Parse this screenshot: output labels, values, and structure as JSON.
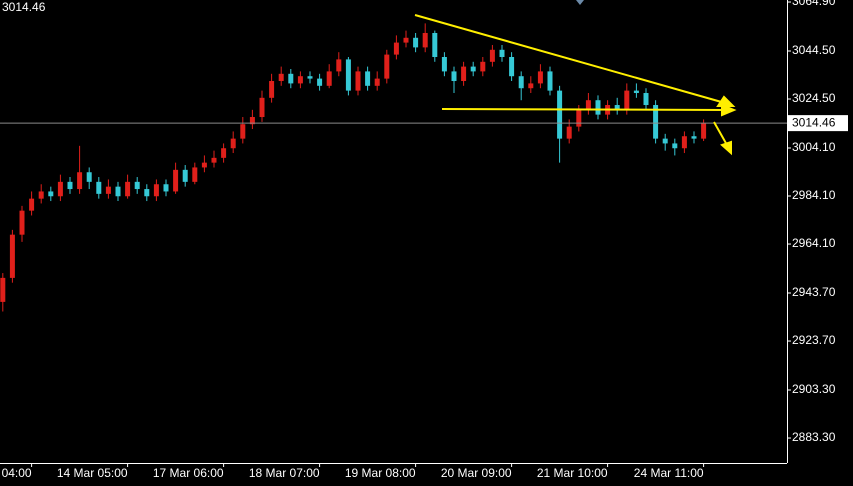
{
  "chart_data": {
    "type": "candlestick",
    "title": "3014.46",
    "up_color": "#e0201b",
    "down_color": "#36c9d6",
    "current_price": 3014.46,
    "categories": [
      null,
      null,
      null,
      "04:00",
      null,
      null,
      null,
      null,
      null,
      null,
      null,
      null,
      null,
      "14 Mar 05:00",
      null,
      null,
      null,
      null,
      null,
      null,
      null,
      null,
      null,
      "17 Mar 06:00",
      null,
      null,
      null,
      null,
      null,
      null,
      null,
      null,
      null,
      "18 Mar 07:00",
      null,
      null,
      null,
      null,
      null,
      null,
      null,
      null,
      null,
      "19 Mar 08:00",
      null,
      null,
      null,
      null,
      null,
      null,
      null,
      null,
      null,
      "20 Mar 09:00",
      null,
      null,
      null,
      null,
      null,
      null,
      null,
      null,
      null,
      "21 Mar 10:00",
      null,
      null,
      null,
      null,
      null,
      null,
      null,
      null,
      null,
      "24 Mar 11:00"
    ],
    "open": [
      2940,
      2950,
      2968,
      2978,
      2983,
      2986,
      2984,
      2990,
      2987,
      2994,
      2990,
      2985,
      2988,
      2984,
      2990,
      2987,
      2984,
      2989,
      2986,
      2995,
      2990,
      2996,
      2998,
      3000,
      3004,
      3008,
      3014,
      3017,
      3025,
      3032,
      3035,
      3031,
      3034,
      3033,
      3030,
      3036,
      3041,
      3028,
      3036,
      3030,
      3033,
      3043,
      3048,
      3050,
      3046,
      3052,
      3042,
      3036,
      3032,
      3038,
      3036,
      3040,
      3045,
      3042,
      3034,
      3029,
      3031,
      3036,
      3028,
      3008,
      3013,
      3020,
      3024,
      3018,
      3022,
      3020,
      3028,
      3027,
      3022,
      3008,
      3006,
      3004,
      3009,
      3008
    ],
    "high": [
      2952,
      2970,
      2980,
      2986,
      2989,
      2988,
      2993,
      2992,
      3005,
      2996,
      2992,
      2991,
      2990,
      2993,
      2992,
      2989,
      2991,
      2991,
      2998,
      2997,
      2998,
      3001,
      3003,
      3006,
      3011,
      3017,
      3020,
      3028,
      3035,
      3038,
      3037,
      3036,
      3036,
      3035,
      3039,
      3044,
      3042,
      3038,
      3038,
      3036,
      3045,
      3051,
      3053,
      3052,
      3056,
      3053,
      3044,
      3038,
      3040,
      3040,
      3042,
      3047,
      3047,
      3044,
      3036,
      3034,
      3039,
      3038,
      3030,
      3016,
      3022,
      3027,
      3026,
      3024,
      3025,
      3031,
      3031,
      3029,
      3024,
      3010,
      3008,
      3011,
      3011,
      3016
    ],
    "low": [
      2936,
      2948,
      2965,
      2976,
      2981,
      2982,
      2982,
      2985,
      2985,
      2987,
      2983,
      2983,
      2982,
      2983,
      2985,
      2982,
      2982,
      2984,
      2985,
      2988,
      2989,
      2994,
      2996,
      2998,
      3002,
      3006,
      3012,
      3015,
      3023,
      3030,
      3029,
      3029,
      3031,
      3028,
      3029,
      3034,
      3026,
      3026,
      3028,
      3028,
      3031,
      3041,
      3046,
      3044,
      3044,
      3040,
      3034,
      3027,
      3030,
      3034,
      3034,
      3038,
      3040,
      3032,
      3024,
      3027,
      3029,
      3026,
      2998,
      3006,
      3011,
      3018,
      3016,
      3016,
      3018,
      3018,
      3025,
      3020,
      3006,
      3003,
      3001,
      3002,
      3006,
      3007
    ],
    "close": [
      2950,
      2968,
      2978,
      2983,
      2986,
      2984,
      2990,
      2987,
      2994,
      2990,
      2985,
      2988,
      2984,
      2990,
      2987,
      2984,
      2989,
      2986,
      2995,
      2990,
      2996,
      2998,
      3000,
      3004,
      3008,
      3014,
      3017,
      3025,
      3032,
      3035,
      3031,
      3034,
      3033,
      3030,
      3036,
      3041,
      3028,
      3036,
      3030,
      3033,
      3043,
      3048,
      3050,
      3046,
      3052,
      3042,
      3036,
      3032,
      3038,
      3036,
      3040,
      3045,
      3042,
      3034,
      3029,
      3031,
      3036,
      3028,
      3008,
      3013,
      3020,
      3024,
      3018,
      3022,
      3020,
      3028,
      3027,
      3022,
      3008,
      3006,
      3004,
      3009,
      3008,
      3014.46
    ],
    "ylim": [
      2872.9,
      3065.74
    ],
    "yticks": [
      {
        "value": 3064.9,
        "label": "3064.90"
      },
      {
        "value": 3044.5,
        "label": "3044.50"
      },
      {
        "value": 3024.5,
        "label": "3024.50"
      },
      {
        "value": 3004.1,
        "label": "3004.10"
      },
      {
        "value": 2984.1,
        "label": "2984.10"
      },
      {
        "value": 2964.1,
        "label": "2964.10"
      },
      {
        "value": 2943.7,
        "label": "2943.70"
      },
      {
        "value": 2923.7,
        "label": "2923.70"
      },
      {
        "value": 2903.3,
        "label": "2903.30"
      },
      {
        "value": 2883.3,
        "label": "2883.30"
      }
    ]
  }
}
